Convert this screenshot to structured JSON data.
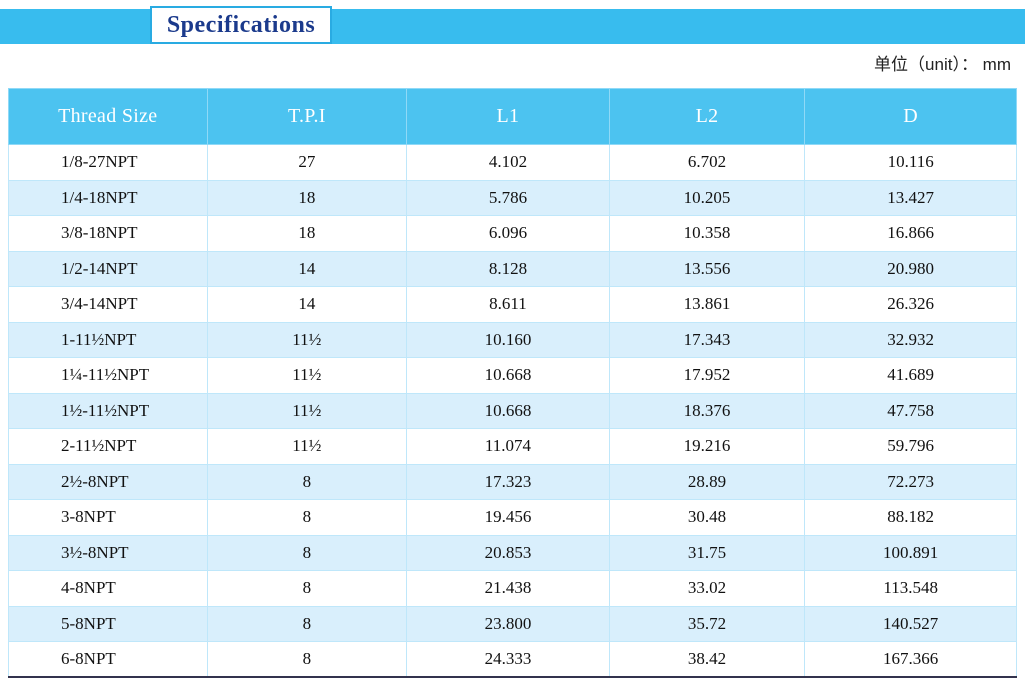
{
  "page": {
    "title": "Specifications",
    "unit_label": "单位（unit）： mm"
  },
  "colors": {
    "banner": "#38BCEE",
    "header_background": "#4CC3F0",
    "row_alt_background": "#D9EFFC",
    "title_text": "#1B3A8C",
    "title_border": "#29ABE2",
    "table_bottom_border": "#33334d"
  },
  "table": {
    "columns": [
      "Thread Size",
      "T.P.I",
      "L1",
      "L2",
      "D"
    ],
    "rows": [
      [
        "1/8-27NPT",
        "27",
        "4.102",
        "6.702",
        "10.116"
      ],
      [
        "1/4-18NPT",
        "18",
        "5.786",
        "10.205",
        "13.427"
      ],
      [
        "3/8-18NPT",
        "18",
        "6.096",
        "10.358",
        "16.866"
      ],
      [
        "1/2-14NPT",
        "14",
        "8.128",
        "13.556",
        "20.980"
      ],
      [
        "3/4-14NPT",
        "14",
        "8.611",
        "13.861",
        "26.326"
      ],
      [
        "1-11½NPT",
        "11½",
        "10.160",
        "17.343",
        "32.932"
      ],
      [
        "1¼-11½NPT",
        "11½",
        "10.668",
        "17.952",
        "41.689"
      ],
      [
        "1½-11½NPT",
        "11½",
        "10.668",
        "18.376",
        "47.758"
      ],
      [
        "2-11½NPT",
        "11½",
        "11.074",
        "19.216",
        "59.796"
      ],
      [
        "2½-8NPT",
        "8",
        "17.323",
        "28.89",
        "72.273"
      ],
      [
        "3-8NPT",
        "8",
        "19.456",
        "30.48",
        "88.182"
      ],
      [
        "3½-8NPT",
        "8",
        "20.853",
        "31.75",
        "100.891"
      ],
      [
        "4-8NPT",
        "8",
        "21.438",
        "33.02",
        "113.548"
      ],
      [
        "5-8NPT",
        "8",
        "23.800",
        "35.72",
        "140.527"
      ],
      [
        "6-8NPT",
        "8",
        "24.333",
        "38.42",
        "167.366"
      ]
    ]
  }
}
